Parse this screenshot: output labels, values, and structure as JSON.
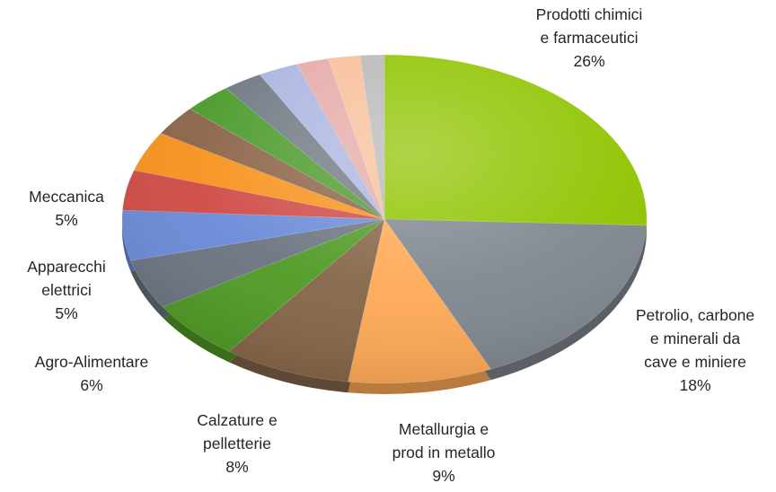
{
  "chart_data": {
    "type": "pie",
    "style": "3d-tilted",
    "legend": "none",
    "slices": [
      {
        "label": "Prodotti chimici e farmaceutici",
        "label_lines": [
          "Prodotti chimici",
          "e farmaceutici"
        ],
        "value": 26,
        "value_label": "26%",
        "color": "#8fc400",
        "show_label": true
      },
      {
        "label": "Petrolio, carbone e minerali da cave e miniere",
        "label_lines": [
          "Petrolio, carbone",
          "e minerali da",
          "cave e miniere"
        ],
        "value": 18,
        "value_label": "18%",
        "color": "#7f868f",
        "show_label": true
      },
      {
        "label": "Metallurgia e prod in metallo",
        "label_lines": [
          "Metallurgia e",
          "prod in metallo"
        ],
        "value": 9,
        "value_label": "9%",
        "color": "#ffa955",
        "show_label": true
      },
      {
        "label": "Calzature e pelletterie",
        "label_lines": [
          "Calzature e",
          "pelletterie"
        ],
        "value": 8,
        "value_label": "8%",
        "color": "#856548",
        "show_label": true
      },
      {
        "label": "Agro-Alimentare",
        "label_lines": [
          "Agro-Alimentare"
        ],
        "value": 6,
        "value_label": "6%",
        "color": "#4f9a24",
        "show_label": true
      },
      {
        "label": "Apparecchi elettrici",
        "label_lines": [
          "Apparecchi",
          "elettrici"
        ],
        "value": 5,
        "value_label": "5%",
        "color": "#6a7480",
        "show_label": true
      },
      {
        "label": "Meccanica",
        "label_lines": [
          "Meccanica"
        ],
        "value": 5,
        "value_label": "5%",
        "color": "#6a8ad8",
        "show_label": true
      },
      {
        "label": "",
        "label_lines": [],
        "value": 4,
        "value_label": "",
        "color": "#cf4a45",
        "show_label": false
      },
      {
        "label": "",
        "label_lines": [],
        "value": 4,
        "value_label": "",
        "color": "#f7911c",
        "show_label": false
      },
      {
        "label": "",
        "label_lines": [],
        "value": 3,
        "value_label": "",
        "color": "#8a6246",
        "show_label": false
      },
      {
        "label": "",
        "label_lines": [],
        "value": 3,
        "value_label": "",
        "color": "#4a9a2a",
        "show_label": false
      },
      {
        "label": "",
        "label_lines": [],
        "value": 2.5,
        "value_label": "",
        "color": "#6f7882",
        "show_label": false
      },
      {
        "label": "",
        "label_lines": [],
        "value": 2.5,
        "value_label": "",
        "color": "#aab4e0",
        "show_label": false
      },
      {
        "label": "",
        "label_lines": [],
        "value": 2,
        "value_label": "",
        "color": "#e5aaa6",
        "show_label": false
      },
      {
        "label": "",
        "label_lines": [],
        "value": 2,
        "value_label": "",
        "color": "#f8be98",
        "show_label": false
      },
      {
        "label": "",
        "label_lines": [],
        "value": 1.5,
        "value_label": "",
        "color": "#b8b8b8",
        "show_label": false
      }
    ]
  }
}
